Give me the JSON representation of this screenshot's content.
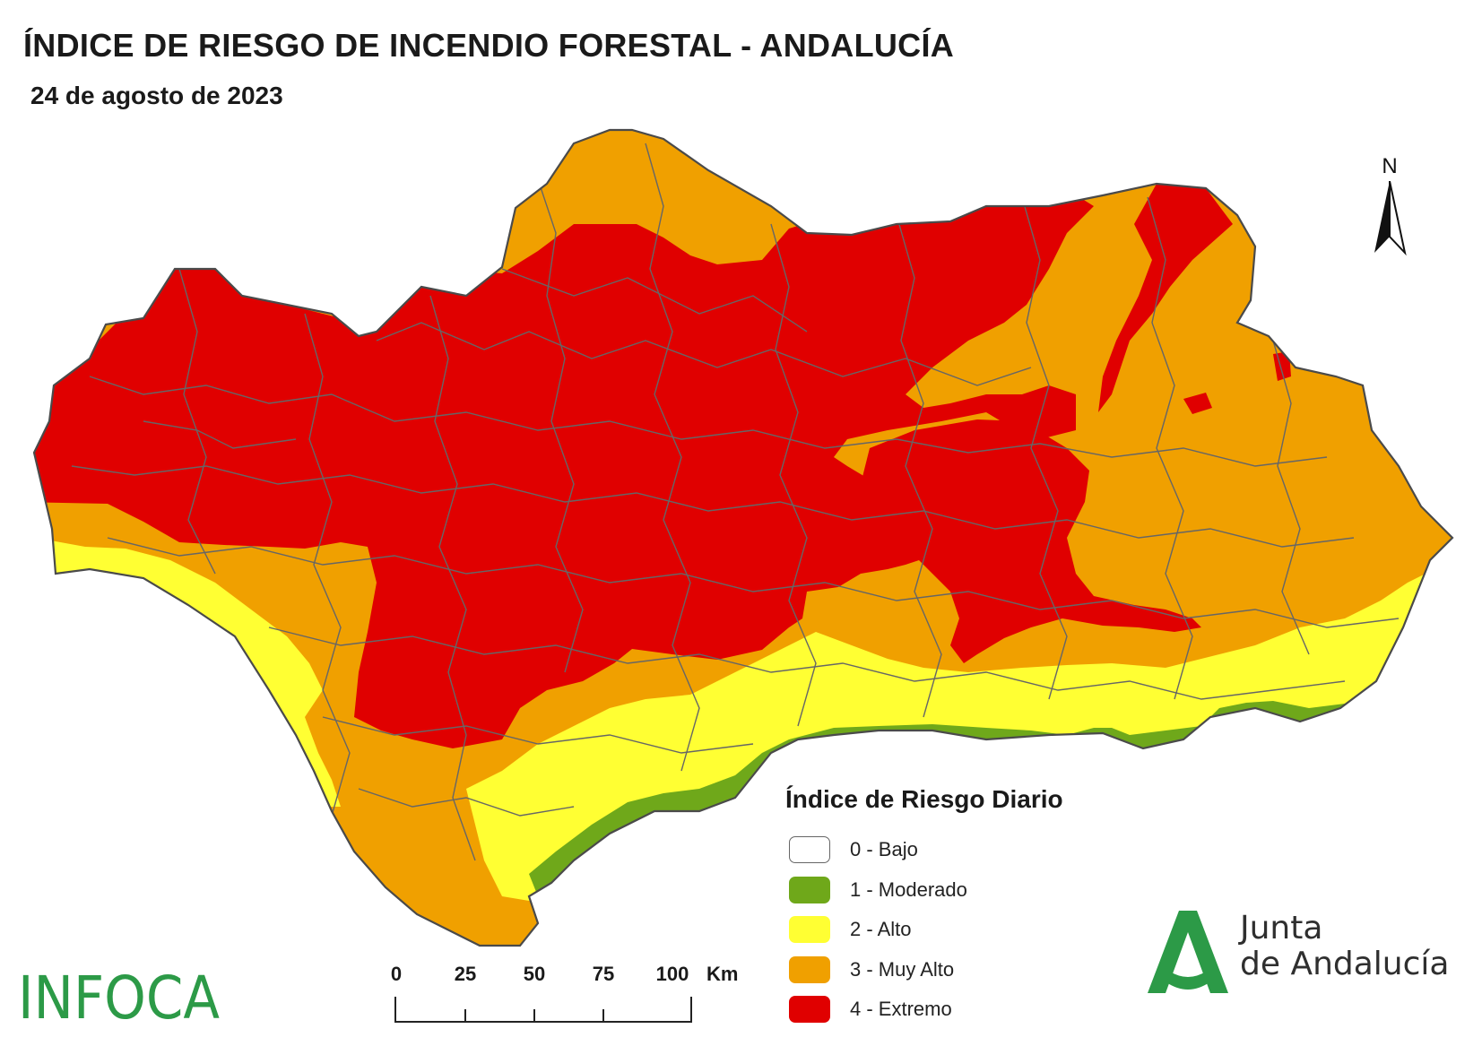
{
  "header": {
    "title": "ÍNDICE DE RIESGO DE INCENDIO FORESTAL - ANDALUCÍA",
    "date": "24 de agosto de 2023"
  },
  "north_arrow": {
    "label": "N"
  },
  "legend": {
    "title": "Índice de Riesgo Diario",
    "items": [
      {
        "label": "0 - Bajo",
        "color": "#ffffff"
      },
      {
        "label": "1 - Moderado",
        "color": "#6fa81a"
      },
      {
        "label": "2 - Alto",
        "color": "#ffff33"
      },
      {
        "label": "3 - Muy Alto",
        "color": "#f0a000"
      },
      {
        "label": "4 - Extremo",
        "color": "#e00000"
      }
    ]
  },
  "scale_bar": {
    "ticks": [
      "0",
      "25",
      "50",
      "75",
      "100"
    ],
    "unit": "Km"
  },
  "logos": {
    "infoca": "INFOCA",
    "junta_line1": "Junta",
    "junta_line2": "de Andalucía"
  },
  "colors": {
    "boundary": "#666666",
    "outline": "#4a4a4a",
    "logo_green": "#2c9a47"
  }
}
